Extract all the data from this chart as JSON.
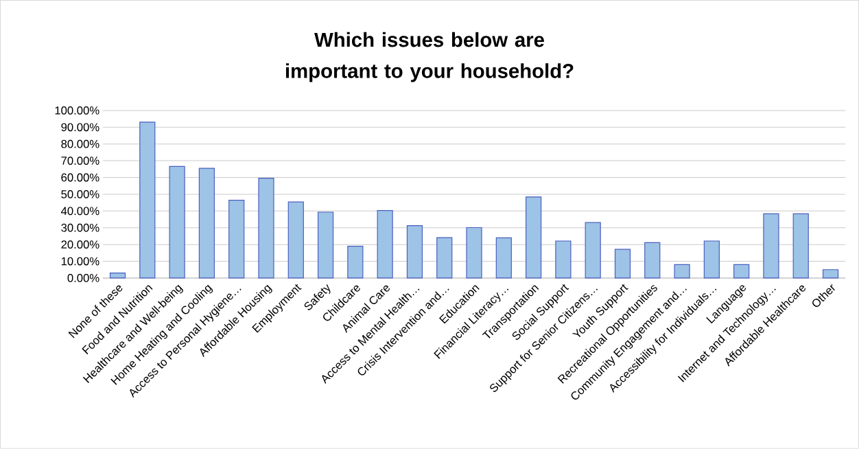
{
  "chart_data": {
    "type": "bar",
    "title": "Which issues below are important to your household?",
    "categories": [
      "None of these",
      "Food and Nutrition",
      "Healthcare and Well-being",
      "Home Heating and Cooling",
      "Access to Personal Hygiene…",
      "Affordable Housing",
      "Employment",
      "Safety",
      "Childcare",
      "Animal Care",
      "Access to Mental Health…",
      "Crisis Intervention and…",
      "Education",
      "Financial Literacy…",
      "Transportation",
      "Social Support",
      "Support for Senior Citizens…",
      "Youth Support",
      "Recreational Opportunities",
      "Community Engagement and…",
      "Accessibility for Individuals…",
      "Language",
      "Internet and Technology…",
      "Affordable Healthcare",
      "Other"
    ],
    "values": [
      3,
      93,
      66.6,
      65.5,
      46.4,
      59.5,
      45.4,
      39.3,
      19,
      40.3,
      31.3,
      24.1,
      30.1,
      24,
      48.4,
      22.1,
      33.1,
      17.1,
      21.1,
      8,
      22.1,
      8,
      38.3,
      38.3,
      5
    ],
    "color": "#9dc3e6",
    "ylim": [
      0,
      100
    ],
    "yticks": [
      {
        "value": 0,
        "label": "0.00%"
      },
      {
        "value": 10,
        "label": "10.00%"
      },
      {
        "value": 20,
        "label": "20.00%"
      },
      {
        "value": 30,
        "label": "30.00%"
      },
      {
        "value": 40,
        "label": "40.00%"
      },
      {
        "value": 50,
        "label": "50.00%"
      },
      {
        "value": 60,
        "label": "60.00%"
      },
      {
        "value": 70,
        "label": "70.00%"
      },
      {
        "value": 80,
        "label": "80.00%"
      },
      {
        "value": 90,
        "label": "90.00%"
      },
      {
        "value": 100,
        "label": "100.00%"
      }
    ],
    "grid": "y"
  }
}
